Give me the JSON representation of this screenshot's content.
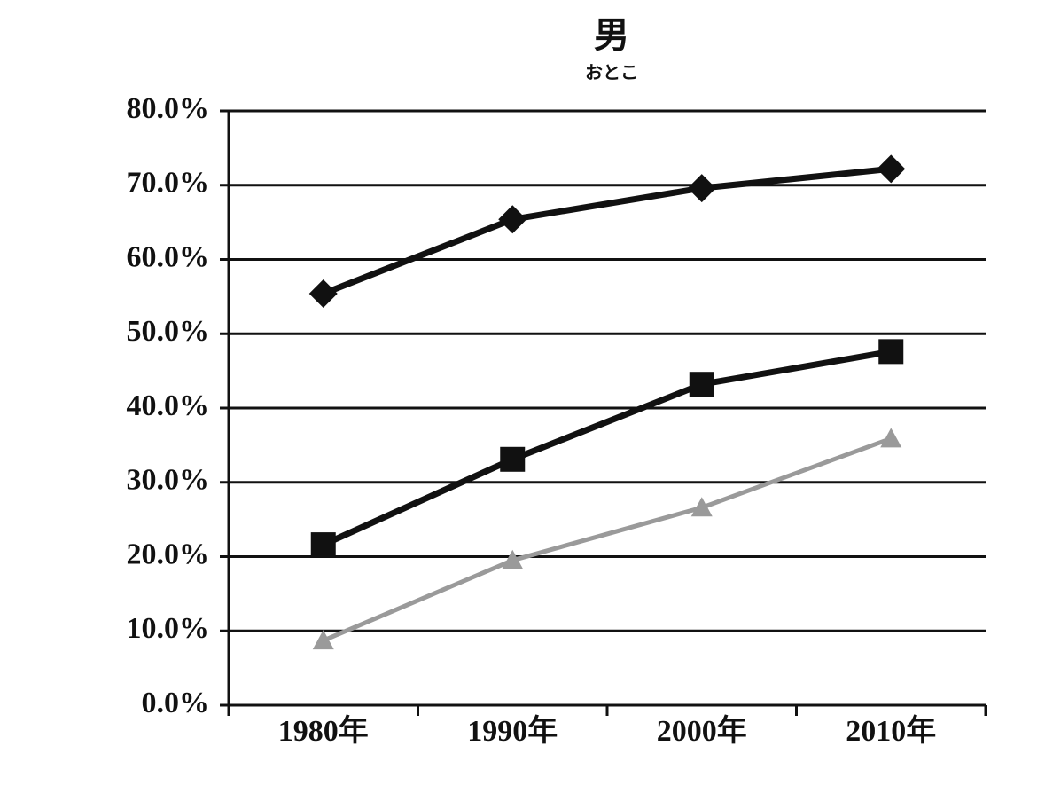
{
  "chart_data": {
    "type": "line",
    "title": "男",
    "subtitle": "おとこ",
    "categories": [
      "1980年",
      "1990年",
      "2000年",
      "2010年"
    ],
    "series": [
      {
        "color": "#111111",
        "marker": "diamond",
        "values": [
          55.4,
          65.4,
          69.6,
          72.2
        ]
      },
      {
        "color": "#111111",
        "marker": "square",
        "values": [
          21.6,
          33.1,
          43.2,
          47.6
        ]
      },
      {
        "color": "#9a9a9a",
        "marker": "triangle",
        "values": [
          8.7,
          19.5,
          26.6,
          35.9
        ]
      }
    ],
    "ylim": [
      0,
      80
    ],
    "yticks": [
      {
        "value": 0,
        "label": "0.0%"
      },
      {
        "value": 10,
        "label": "10.0%"
      },
      {
        "value": 20,
        "label": "20.0%"
      },
      {
        "value": 30,
        "label": "30.0%"
      },
      {
        "value": 40,
        "label": "40.0%"
      },
      {
        "value": 50,
        "label": "50.0%"
      },
      {
        "value": 60,
        "label": "60.0%"
      },
      {
        "value": 70,
        "label": "70.0%"
      },
      {
        "value": 80,
        "label": "80.0%"
      }
    ],
    "grid": true
  }
}
